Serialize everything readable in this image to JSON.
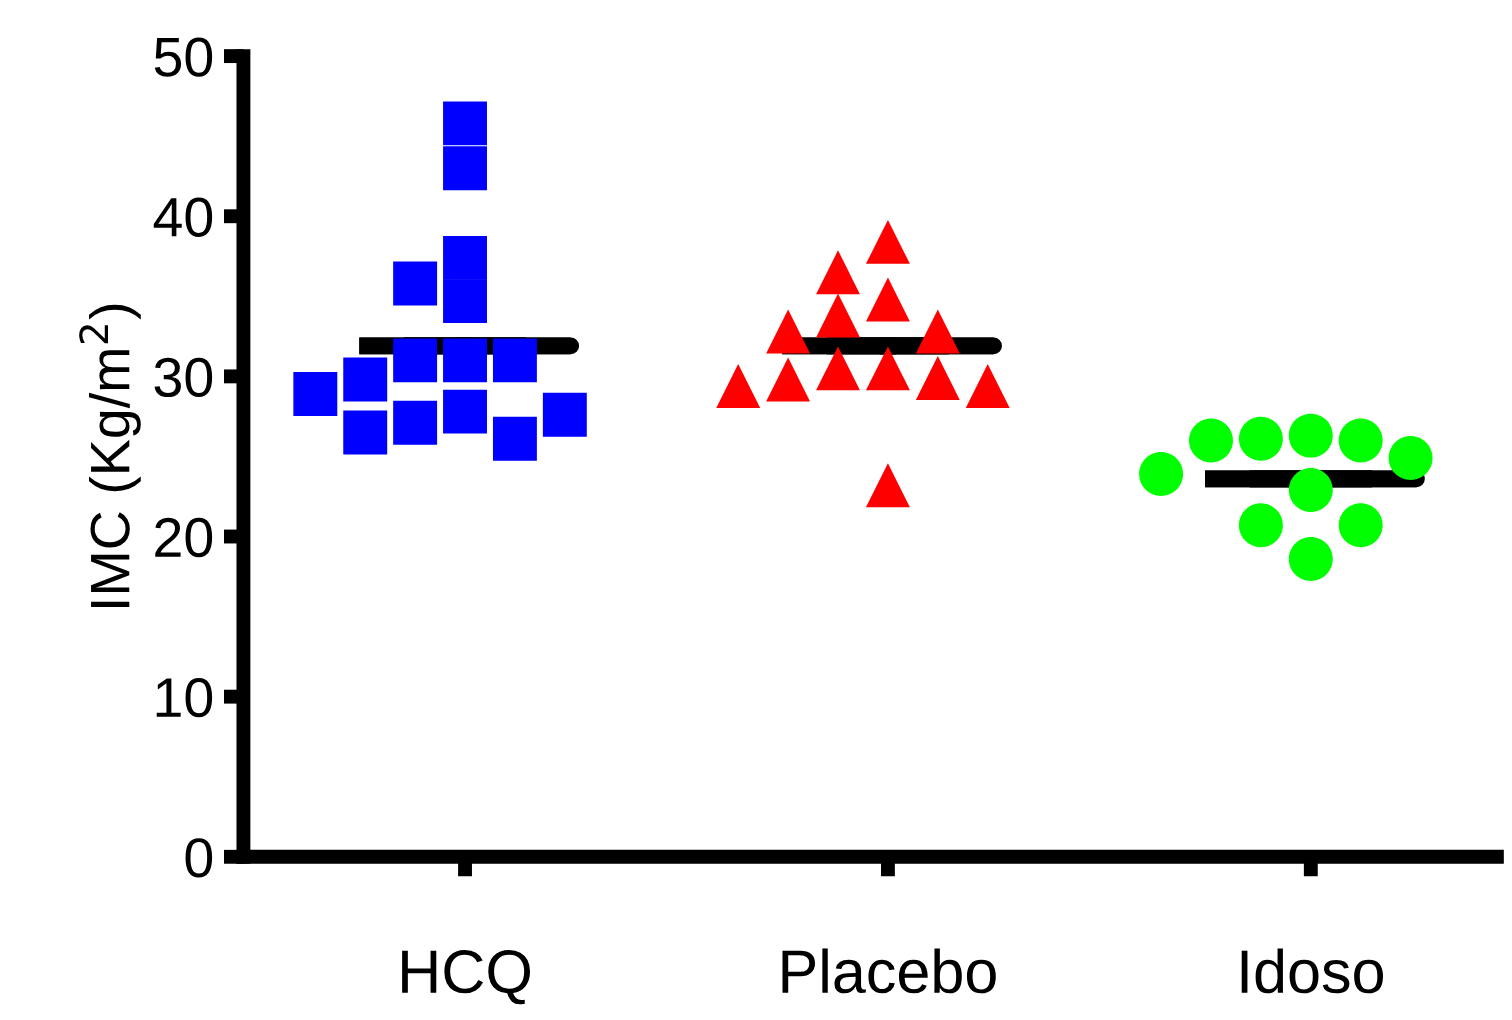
{
  "chart_data": {
    "type": "box",
    "ylabel": "IMC (Kg/m$^{2}$)",
    "categories": [
      "HCQ",
      "Placebo",
      "Idoso"
    ],
    "boxes": [
      {
        "low": 31.9,
        "q1": 31.9,
        "median": 31.9,
        "q3": 31.9,
        "high": 31.9
      },
      {
        "low": 31.9,
        "q1": 31.9,
        "median": 31.9,
        "q3": 31.9,
        "high": 31.9
      },
      {
        "low": 23.6,
        "q1": 23.6,
        "median": 23.6,
        "q3": 23.6,
        "high": 23.6
      }
    ],
    "series": [
      {
        "type": "scatter",
        "marker": "square",
        "color": "#0000ff",
        "x": [
          "HCQ",
          "HCQ",
          "HCQ",
          "HCQ",
          "HCQ",
          "HCQ",
          "HCQ",
          "HCQ",
          "HCQ",
          "HCQ",
          "HCQ",
          "HCQ",
          "HCQ",
          "HCQ",
          "HCQ"
        ],
        "values": [
          45.8,
          43.0,
          37.4,
          35.8,
          34.7,
          31.0,
          31.0,
          31.0,
          29.8,
          27.8,
          27.1,
          26.1,
          26.5,
          27.6,
          28.9
        ]
      },
      {
        "type": "scatter",
        "marker": "triangle",
        "color": "#ff0000",
        "x": [
          "Placebo",
          "Placebo",
          "Placebo",
          "Placebo",
          "Placebo",
          "Placebo",
          "Placebo",
          "Placebo",
          "Placebo",
          "Placebo",
          "Placebo",
          "Placebo",
          "Placebo"
        ],
        "values": [
          38.4,
          36.5,
          34.8,
          33.8,
          32.8,
          32.8,
          30.5,
          30.5,
          29.9,
          29.8,
          29.4,
          29.4,
          23.2
        ]
      },
      {
        "type": "scatter",
        "marker": "circle",
        "color": "#00ff00",
        "x": [
          "Idoso",
          "Idoso",
          "Idoso",
          "Idoso",
          "Idoso",
          "Idoso",
          "Idoso",
          "Idoso",
          "Idoso",
          "Idoso"
        ],
        "values": [
          26.3,
          26.1,
          26.0,
          26.0,
          24.9,
          23.9,
          22.9,
          20.7,
          20.7,
          18.6
        ]
      }
    ],
    "ylim": [
      0,
      50
    ],
    "yticks": [
      0,
      10,
      20,
      30,
      40,
      50
    ],
    "grid": false,
    "legend": false
  }
}
